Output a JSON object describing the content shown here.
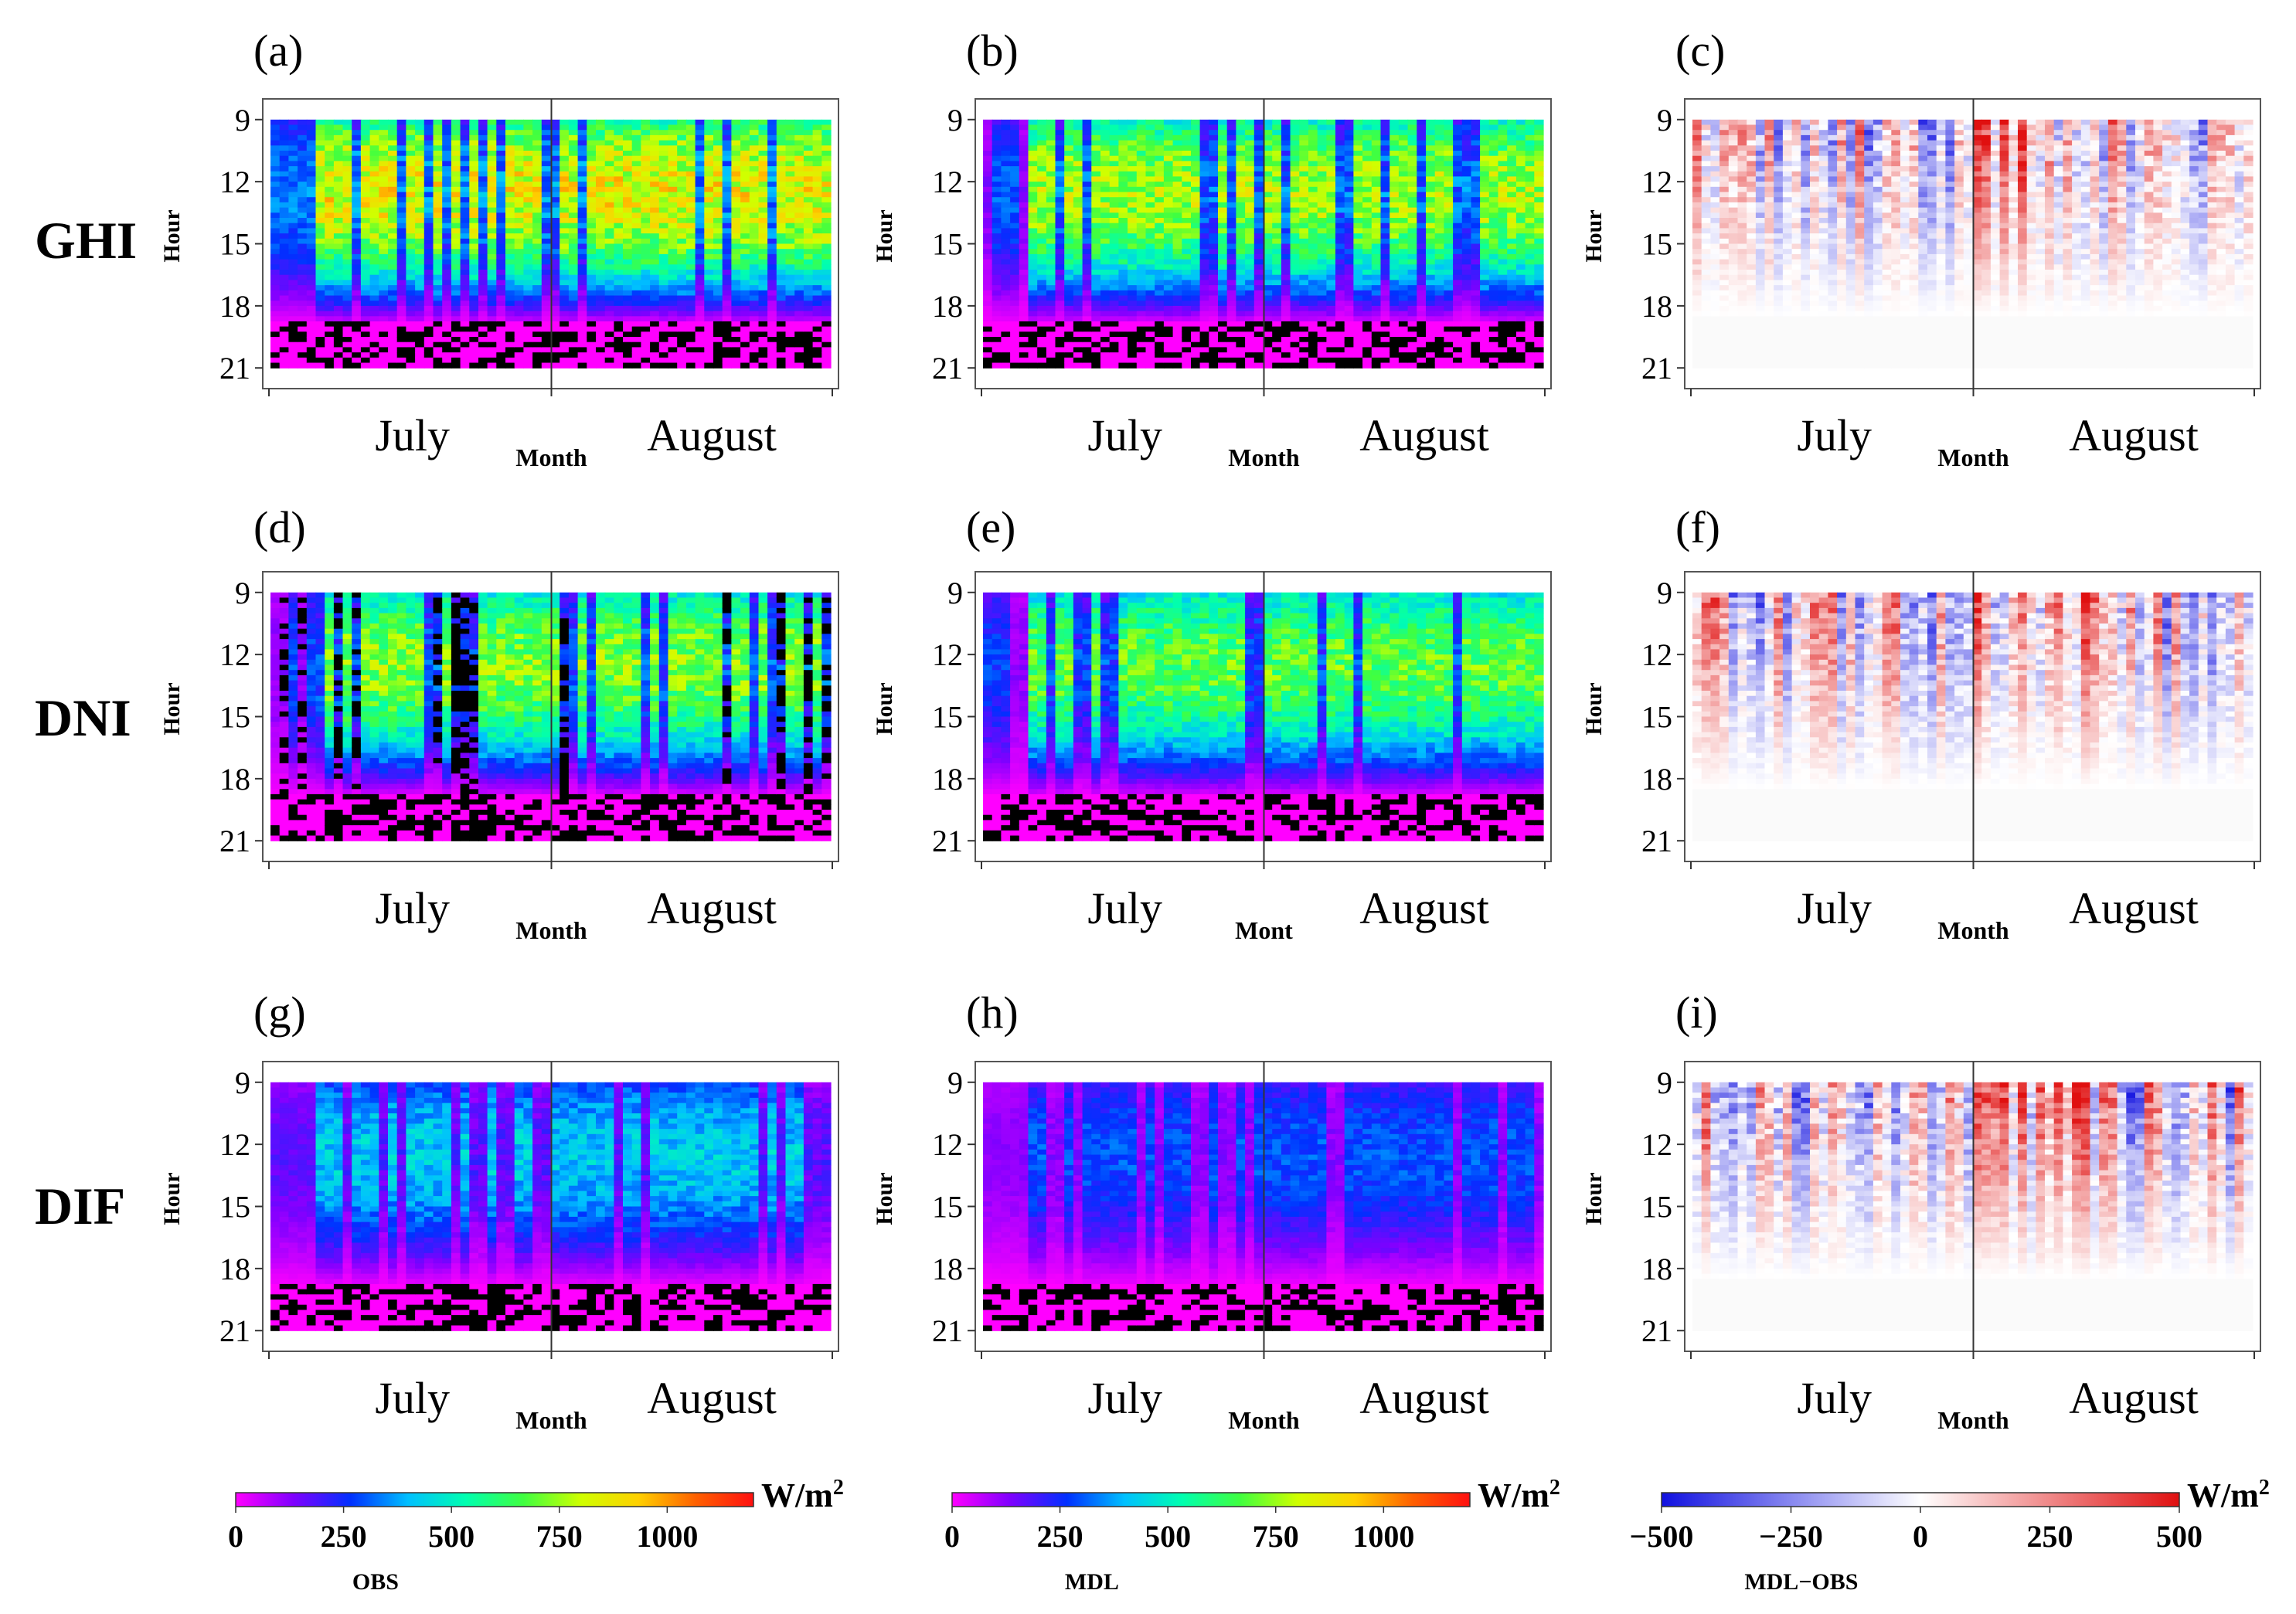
{
  "chart_data": {
    "type": "heatmap",
    "description_rows": [
      "GHI",
      "DNI",
      "DIF"
    ],
    "y_axis": {
      "label": "Hour",
      "ticks": [
        "9",
        "12",
        "15",
        "18",
        "21"
      ],
      "range": [
        8,
        22
      ]
    },
    "x_axis": {
      "label": "Month",
      "tick_labels": [
        "July",
        "August"
      ]
    },
    "panels": [
      {
        "id": "a",
        "label": "(a)",
        "row": "GHI",
        "kind": "OBS",
        "peak": 1000,
        "night": "black",
        "x_label": "Month",
        "months": [
          "July",
          "August"
        ]
      },
      {
        "id": "b",
        "label": "(b)",
        "row": "GHI",
        "kind": "MDL",
        "peak": 900,
        "night": "black",
        "x_label": "Month",
        "months": [
          "July",
          "August"
        ]
      },
      {
        "id": "c",
        "label": "(c)",
        "row": "GHI",
        "kind": "DIFF",
        "x_label": "Month",
        "months": [
          "July",
          "August"
        ]
      },
      {
        "id": "d",
        "label": "(d)",
        "row": "DNI",
        "kind": "OBS",
        "peak": 850,
        "night": "black",
        "x_label": "Month",
        "months": [
          "July",
          "August"
        ]
      },
      {
        "id": "e",
        "label": "(e)",
        "row": "DNI",
        "kind": "MDL",
        "peak": 800,
        "night": "black",
        "x_label": "Mont",
        "months": [
          "July",
          "August"
        ]
      },
      {
        "id": "f",
        "label": "(f)",
        "row": "DNI",
        "kind": "DIFF",
        "x_label": "Month",
        "months": [
          "July",
          "August"
        ]
      },
      {
        "id": "g",
        "label": "(g)",
        "row": "DIF",
        "kind": "OBS",
        "peak": 500,
        "night": "black",
        "x_label": "Month",
        "months": [
          "July",
          "August"
        ]
      },
      {
        "id": "h",
        "label": "(h)",
        "row": "DIF",
        "kind": "MDL",
        "peak": 350,
        "night": "black",
        "x_label": "Month",
        "months": [
          "July",
          "August"
        ]
      },
      {
        "id": "i",
        "label": "(i)",
        "row": "DIF",
        "kind": "DIFF",
        "x_label": "Month",
        "months": [
          "July",
          "August"
        ]
      }
    ],
    "colorbars": [
      {
        "name": "OBS",
        "unit": "W/m2",
        "ticks": [
          "0",
          "250",
          "500",
          "750",
          "1000"
        ],
        "range": [
          0,
          1200
        ],
        "stops": [
          "#ff00ff",
          "#8000ff",
          "#0030ff",
          "#00c0ff",
          "#00ffb0",
          "#40ff40",
          "#d0ff00",
          "#ffd000",
          "#ff6000",
          "#ff1010"
        ]
      },
      {
        "name": "MDL",
        "unit": "W/m2",
        "ticks": [
          "0",
          "250",
          "500",
          "750",
          "1000"
        ],
        "range": [
          0,
          1200
        ],
        "stops": [
          "#ff00ff",
          "#8000ff",
          "#0030ff",
          "#00c0ff",
          "#00ffb0",
          "#40ff40",
          "#d0ff00",
          "#ffd000",
          "#ff6000",
          "#ff1010"
        ]
      },
      {
        "name": "MDL−OBS",
        "unit": "W/m2",
        "ticks": [
          "−500",
          "−250",
          "0",
          "250",
          "500"
        ],
        "range": [
          -500,
          500
        ],
        "stops": [
          "#1010e0",
          "#ffffff",
          "#e01010"
        ]
      }
    ]
  }
}
